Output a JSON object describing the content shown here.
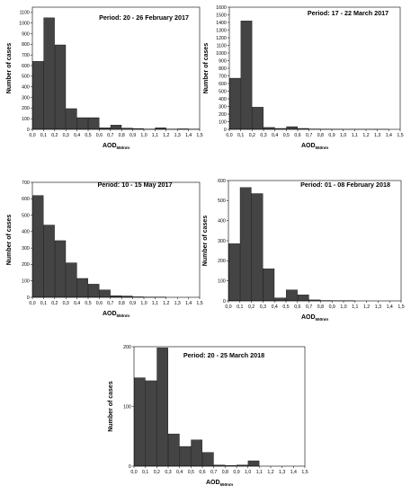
{
  "chart_data": [
    {
      "type": "bar",
      "title": "Period: 20 - 26 February 2017",
      "xlabel": "AOD",
      "xlabel_sub": "550nm",
      "ylabel": "Number of cases",
      "categories": [
        "0.0–0.1",
        "0.1–0.2",
        "0.2–0.3",
        "0.3–0.4",
        "0.4–0.5",
        "0.5–0.6",
        "0.6–0.7",
        "0.7–0.8",
        "0.8–0.9",
        "0.9–1.0",
        "1.0–1.1",
        "1.1–1.2",
        "1.2–1.3",
        "1.3–1.4",
        "1.4–1.5"
      ],
      "values": [
        640,
        1050,
        795,
        195,
        110,
        110,
        15,
        40,
        12,
        8,
        3,
        15,
        3,
        5,
        2
      ],
      "ylim": [
        0,
        1150
      ],
      "yticks": [
        0,
        100,
        200,
        300,
        400,
        500,
        600,
        700,
        800,
        900,
        1000,
        1100
      ],
      "xticks": [
        "0,0",
        "0,1",
        "0,2",
        "0,3",
        "0,4",
        "0,5",
        "0,6",
        "0,7",
        "0,8",
        "0,9",
        "1,0",
        "1,1",
        "1,2",
        "1,3",
        "1,4",
        "1,5"
      ],
      "grid": false
    },
    {
      "type": "bar",
      "title": "Period: 17 - 22 March 2017",
      "xlabel": "AOD",
      "xlabel_sub": "550nm",
      "ylabel": "Number of cases",
      "categories": [
        "0.0–0.1",
        "0.1–0.2",
        "0.2–0.3",
        "0.3–0.4",
        "0.4–0.5",
        "0.5–0.6",
        "0.6–0.7",
        "0.7–0.8",
        "0.8–0.9",
        "0.9–1.0",
        "1.0–1.1",
        "1.1–1.2",
        "1.2–1.3",
        "1.3–1.4",
        "1.4–1.5"
      ],
      "values": [
        670,
        1420,
        290,
        25,
        12,
        35,
        12,
        5,
        3,
        2,
        1,
        1,
        1,
        1,
        0
      ],
      "ylim": [
        0,
        1600
      ],
      "yticks": [
        0,
        100,
        200,
        300,
        400,
        500,
        600,
        700,
        800,
        900,
        1000,
        1100,
        1200,
        1300,
        1400,
        1500,
        1600
      ],
      "xticks": [
        "0,0",
        "0,1",
        "0,2",
        "0,3",
        "0,4",
        "0,5",
        "0,6",
        "0,7",
        "0,8",
        "0,9",
        "1,0",
        "1,1",
        "1,2",
        "1,3",
        "1,4",
        "1,5"
      ],
      "grid": false
    },
    {
      "type": "bar",
      "title": "Period: 10 - 15 May 2017",
      "xlabel": "AOD",
      "xlabel_sub": "550nm",
      "ylabel": "Number of cases",
      "categories": [
        "0.0–0.1",
        "0.1–0.2",
        "0.2–0.3",
        "0.3–0.4",
        "0.4–0.5",
        "0.5–0.6",
        "0.6–0.7",
        "0.7–0.8",
        "0.8–0.9",
        "0.9–1.0",
        "1.0–1.1",
        "1.1–1.2",
        "1.2–1.3",
        "1.3–1.4",
        "1.4–1.5"
      ],
      "values": [
        620,
        440,
        345,
        210,
        115,
        80,
        45,
        10,
        8,
        3,
        1,
        1,
        0,
        0,
        0
      ],
      "ylim": [
        0,
        700
      ],
      "yticks": [
        0,
        100,
        200,
        300,
        400,
        500,
        600,
        700
      ],
      "xticks": [
        "0,0",
        "0,1",
        "0,2",
        "0,3",
        "0,4",
        "0,5",
        "0,6",
        "0,7",
        "0,8",
        "0,9",
        "1,0",
        "1,1",
        "1,2",
        "1,3",
        "1,4",
        "1,5"
      ],
      "grid": false
    },
    {
      "type": "bar",
      "title": "Period: 01 - 08 February 2018",
      "xlabel": "AOD",
      "xlabel_sub": "550nm",
      "ylabel": "Number of cases",
      "categories": [
        "0.0–0.1",
        "0.1–0.2",
        "0.2–0.3",
        "0.3–0.4",
        "0.4–0.5",
        "0.5–0.6",
        "0.6–0.7",
        "0.7–0.8",
        "0.8–0.9",
        "0.9–1.0",
        "1.0–1.1",
        "1.1–1.2",
        "1.2–1.3",
        "1.3–1.4",
        "1.4–1.5"
      ],
      "values": [
        285,
        565,
        535,
        160,
        15,
        55,
        30,
        5,
        2,
        1,
        1,
        0,
        0,
        0,
        0
      ],
      "ylim": [
        0,
        600
      ],
      "yticks": [
        0,
        100,
        200,
        300,
        400,
        500,
        600
      ],
      "xticks": [
        "0,0",
        "0,1",
        "0,2",
        "0,3",
        "0,4",
        "0,5",
        "0,6",
        "0,7",
        "0,8",
        "0,9",
        "1,0",
        "1,1",
        "1,2",
        "1,3",
        "1,4",
        "1,5"
      ],
      "grid": false
    },
    {
      "type": "bar",
      "title": "Period: 20 - 25 March 2018",
      "xlabel": "AOD",
      "xlabel_sub": "550nm",
      "ylabel": "Number of cases",
      "categories": [
        "0.0–0.1",
        "0.1–0.2",
        "0.2–0.3",
        "0.3–0.4",
        "0.4–0.5",
        "0.5–0.6",
        "0.6–0.7",
        "0.7–0.8",
        "0.8–0.9",
        "0.9–1.0",
        "1.0–1.1",
        "1.1–1.2",
        "1.2–1.3",
        "1.3–1.4",
        "1.4–1.5"
      ],
      "values": [
        148,
        143,
        198,
        54,
        33,
        44,
        23,
        2,
        1,
        2,
        9,
        0,
        0,
        0,
        0
      ],
      "ylim": [
        0,
        200
      ],
      "yticks": [
        0,
        100,
        200
      ],
      "xticks": [
        "0,0",
        "0,1",
        "0,2",
        "0,3",
        "0,4",
        "0,5",
        "0,6",
        "0,7",
        "0,8",
        "0,9",
        "1,0",
        "1,1",
        "1,2",
        "1,3",
        "1,4",
        "1,5"
      ],
      "grid": false
    }
  ]
}
